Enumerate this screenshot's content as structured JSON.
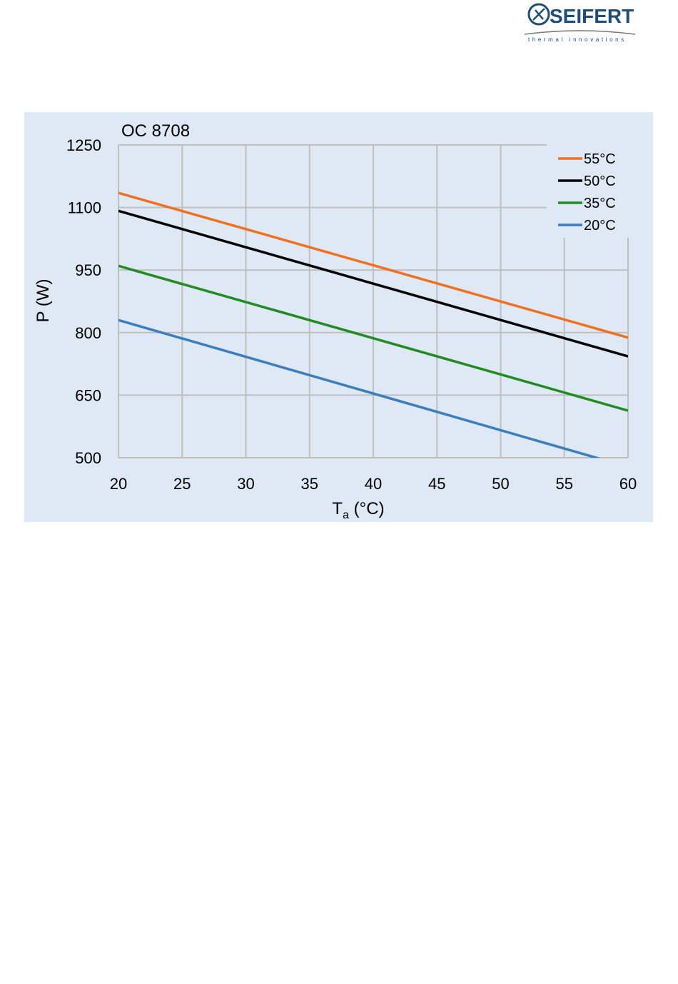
{
  "logo": {
    "brand": "SEIFERT",
    "tagline": "thermal innovations"
  },
  "colors": {
    "panel_bg": "#dfe9f5",
    "grid": "#bfbfbf",
    "brand_blue": "#1f4e79"
  },
  "chart_data": {
    "type": "line",
    "title": "OC 8708",
    "xlabel": "T",
    "xlabel_sub": "a",
    "xlabel_suffix": " (°C)",
    "ylabel": "P (W)",
    "xlim": [
      20,
      60
    ],
    "ylim": [
      500,
      1250
    ],
    "xticks": [
      20,
      25,
      30,
      35,
      40,
      45,
      50,
      55,
      60
    ],
    "yticks": [
      500,
      650,
      800,
      950,
      1100,
      1250
    ],
    "grid": true,
    "legend_position": "top-right",
    "series": [
      {
        "name": "55°C",
        "color": "#f07020",
        "x": [
          20,
          60
        ],
        "y": [
          1135,
          788
        ]
      },
      {
        "name": "50°C",
        "color": "#000000",
        "x": [
          20,
          60
        ],
        "y": [
          1092,
          743
        ]
      },
      {
        "name": "35°C",
        "color": "#228b22",
        "x": [
          20,
          60
        ],
        "y": [
          960,
          613
        ]
      },
      {
        "name": "20°C",
        "color": "#3a7ebf",
        "x": [
          20,
          60
        ],
        "y": [
          830,
          478
        ]
      }
    ]
  }
}
